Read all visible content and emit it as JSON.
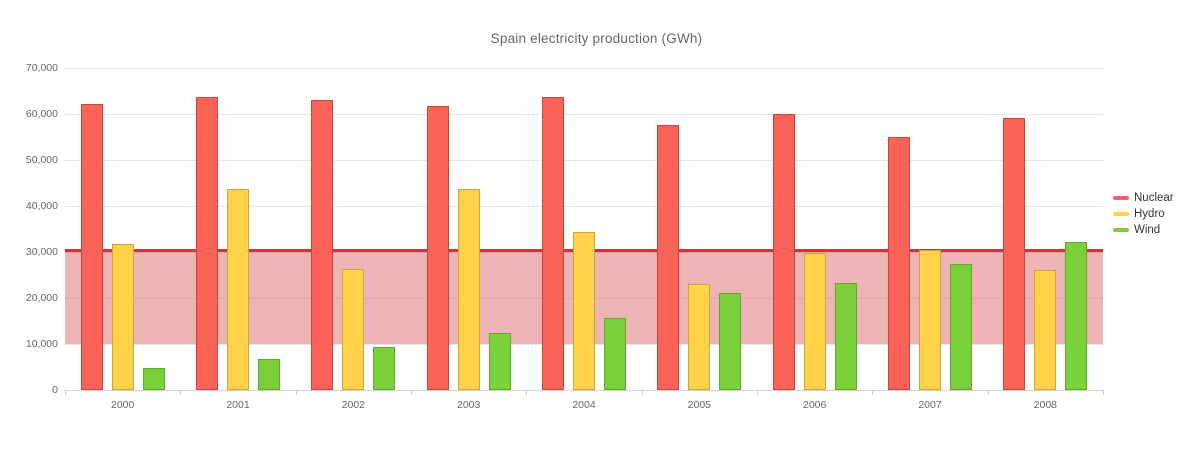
{
  "chart_data": {
    "type": "bar",
    "title": "Spain electricity production (GWh)",
    "categories": [
      "2000",
      "2001",
      "2002",
      "2003",
      "2004",
      "2005",
      "2006",
      "2007",
      "2008"
    ],
    "series": [
      {
        "name": "Nuclear",
        "color": "#FC6358",
        "border": "#C6473E",
        "values": [
          62100,
          63600,
          63000,
          61800,
          63600,
          57600,
          60100,
          55000,
          59100
        ]
      },
      {
        "name": "Hydro",
        "color": "#FFD24A",
        "border": "#CBA53C",
        "values": [
          31700,
          43800,
          26300,
          43800,
          34400,
          23000,
          29700,
          30500,
          26100
        ]
      },
      {
        "name": "Wind",
        "color": "#79D038",
        "border": "#61A72D",
        "values": [
          4700,
          6700,
          9300,
          12300,
          15600,
          21000,
          23200,
          27500,
          32200
        ]
      }
    ],
    "ylim": [
      0,
      70000
    ],
    "ytick_step": 10000,
    "yticks": [
      0,
      10000,
      20000,
      30000,
      40000,
      50000,
      60000,
      70000
    ],
    "ytick_labels": [
      "0",
      "10,000",
      "20,000",
      "30,000",
      "40,000",
      "50,000",
      "60,000",
      "70,000"
    ],
    "xlabel": "",
    "ylabel": "",
    "grid": true,
    "legend_position": "right",
    "plot_line": {
      "value": 30400,
      "color": "#CE3438"
    },
    "plot_band": {
      "from": 10000,
      "to": 30400,
      "color": "rgba(206,52,56,0.37)"
    }
  }
}
